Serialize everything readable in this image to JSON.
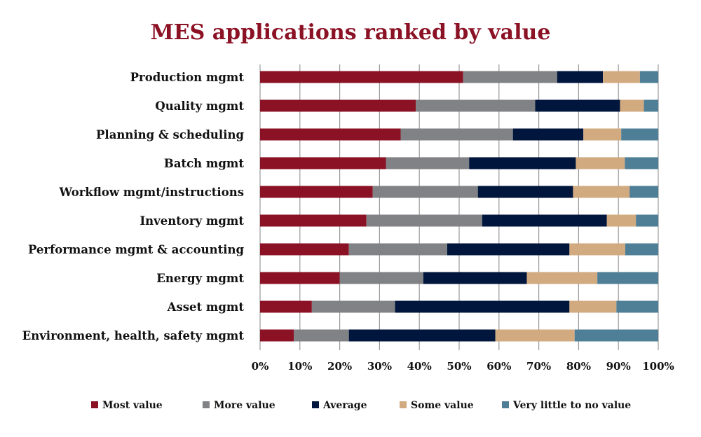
{
  "chart_data": {
    "type": "bar",
    "orientation": "horizontal",
    "stacked": "percent",
    "title": "MES applications ranked by value",
    "categories": [
      "Production mgmt",
      "Quality  mgmt",
      "Planning & scheduling",
      "Batch mgmt",
      "Workflow mgmt/instructions",
      "Inventory mgmt",
      "Performance mgmt & accounting",
      "Energy mgmt",
      "Asset mgmt",
      "Environment, health, safety mgmt"
    ],
    "series": [
      {
        "name": "Most value",
        "color": "#8b1124",
        "values": [
          51,
          39.1,
          35.3,
          31.6,
          28.3,
          26.7,
          22.3,
          20,
          13,
          8.5
        ]
      },
      {
        "name": "More value",
        "color": "#808285",
        "values": [
          23.6,
          30,
          28.2,
          20.9,
          26.4,
          29.1,
          24.7,
          21,
          20.9,
          13.8
        ]
      },
      {
        "name": "Average",
        "color": "#00163c",
        "values": [
          11.5,
          21.3,
          17.7,
          26.8,
          23.9,
          31.3,
          30.7,
          26,
          43.8,
          36.8
        ]
      },
      {
        "name": "Some value",
        "color": "#d2aa80",
        "values": [
          9.3,
          6,
          9.5,
          12.3,
          14.2,
          7.3,
          14,
          17.7,
          11.8,
          19.9
        ]
      },
      {
        "name": "Very little to no value",
        "color": "#4e7f96",
        "values": [
          4.6,
          3.6,
          9.3,
          8.4,
          7.2,
          5.6,
          8.3,
          15.3,
          10.5,
          21
        ]
      }
    ],
    "xlim": [
      0,
      100
    ],
    "xticks": [
      "0%",
      "10%",
      "20%",
      "30%",
      "40%",
      "50%",
      "60%",
      "70%",
      "80%",
      "90%",
      "100%"
    ],
    "grid": true,
    "legend": "bottom",
    "title_color": "#8b1124"
  }
}
